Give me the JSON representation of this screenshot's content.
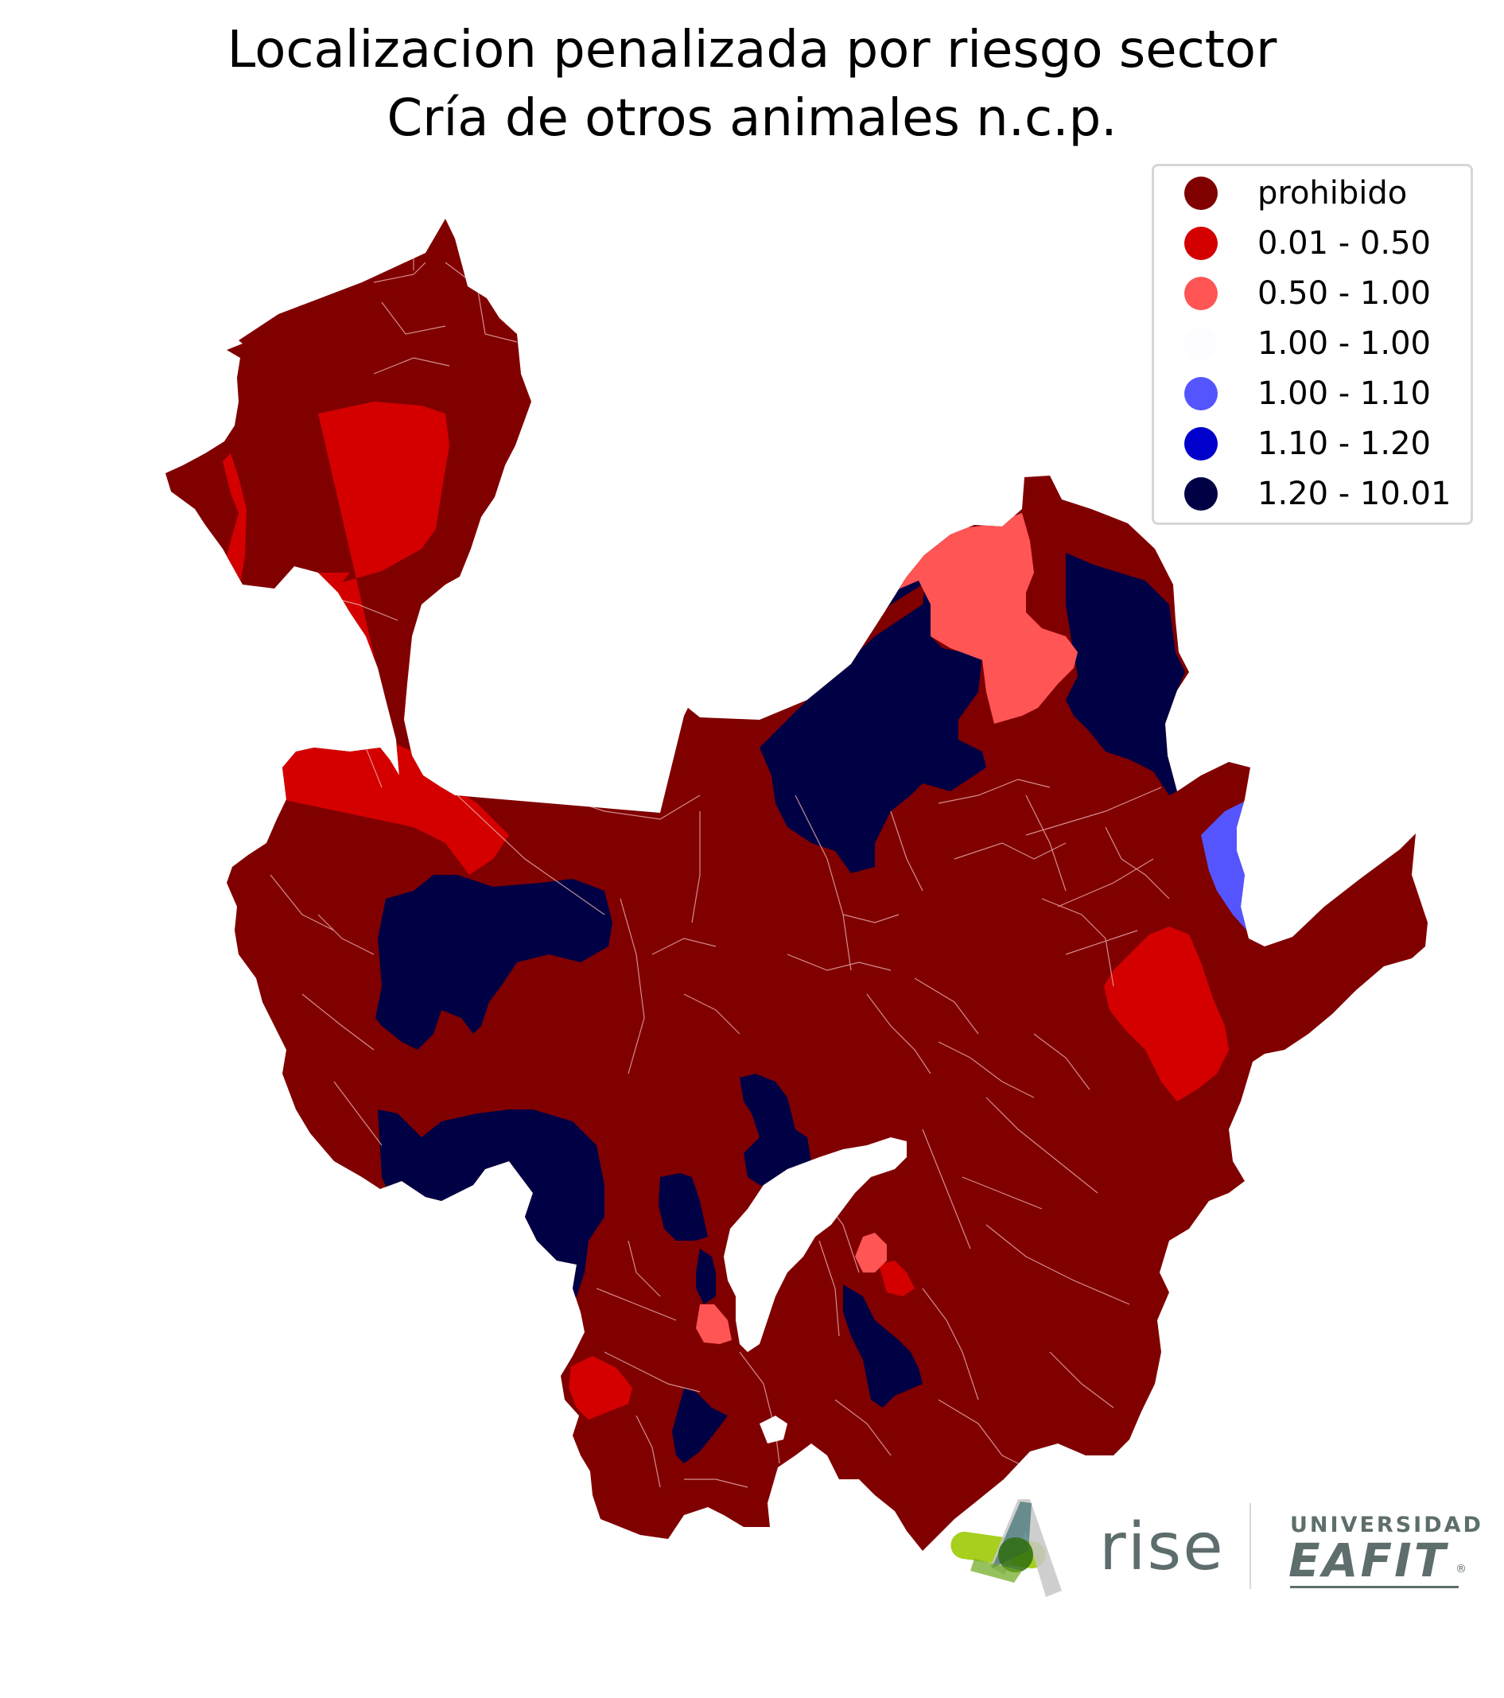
{
  "title": {
    "line1": "Localizacion penalizada por riesgo sector",
    "line2": "Cría de otros animales n.c.p."
  },
  "colors": {
    "prohibido": "#800000",
    "r1": "#d40000",
    "r2": "#ff5555",
    "r3": "#fdfdff",
    "r4": "#5555ff",
    "r5": "#0000cc",
    "r6": "#000044",
    "border": "#e8b0b0"
  },
  "legend": {
    "items": [
      {
        "label": "prohibido",
        "color": "#800000"
      },
      {
        "label": "0.01 - 0.50",
        "color": "#d40000"
      },
      {
        "label": "0.50 - 1.00",
        "color": "#ff5555"
      },
      {
        "label": "1.00 - 1.00",
        "color": "#fdfdff"
      },
      {
        "label": "1.00 - 1.10",
        "color": "#5555ff"
      },
      {
        "label": "1.10 - 1.20",
        "color": "#0000cc"
      },
      {
        "label": "1.20 - 10.01",
        "color": "#000044"
      }
    ]
  },
  "logos": {
    "rise": "rise",
    "eafit_small": "UNIVERSIDAD",
    "eafit_big": "EAFIT",
    "eafit_mark": "®"
  }
}
